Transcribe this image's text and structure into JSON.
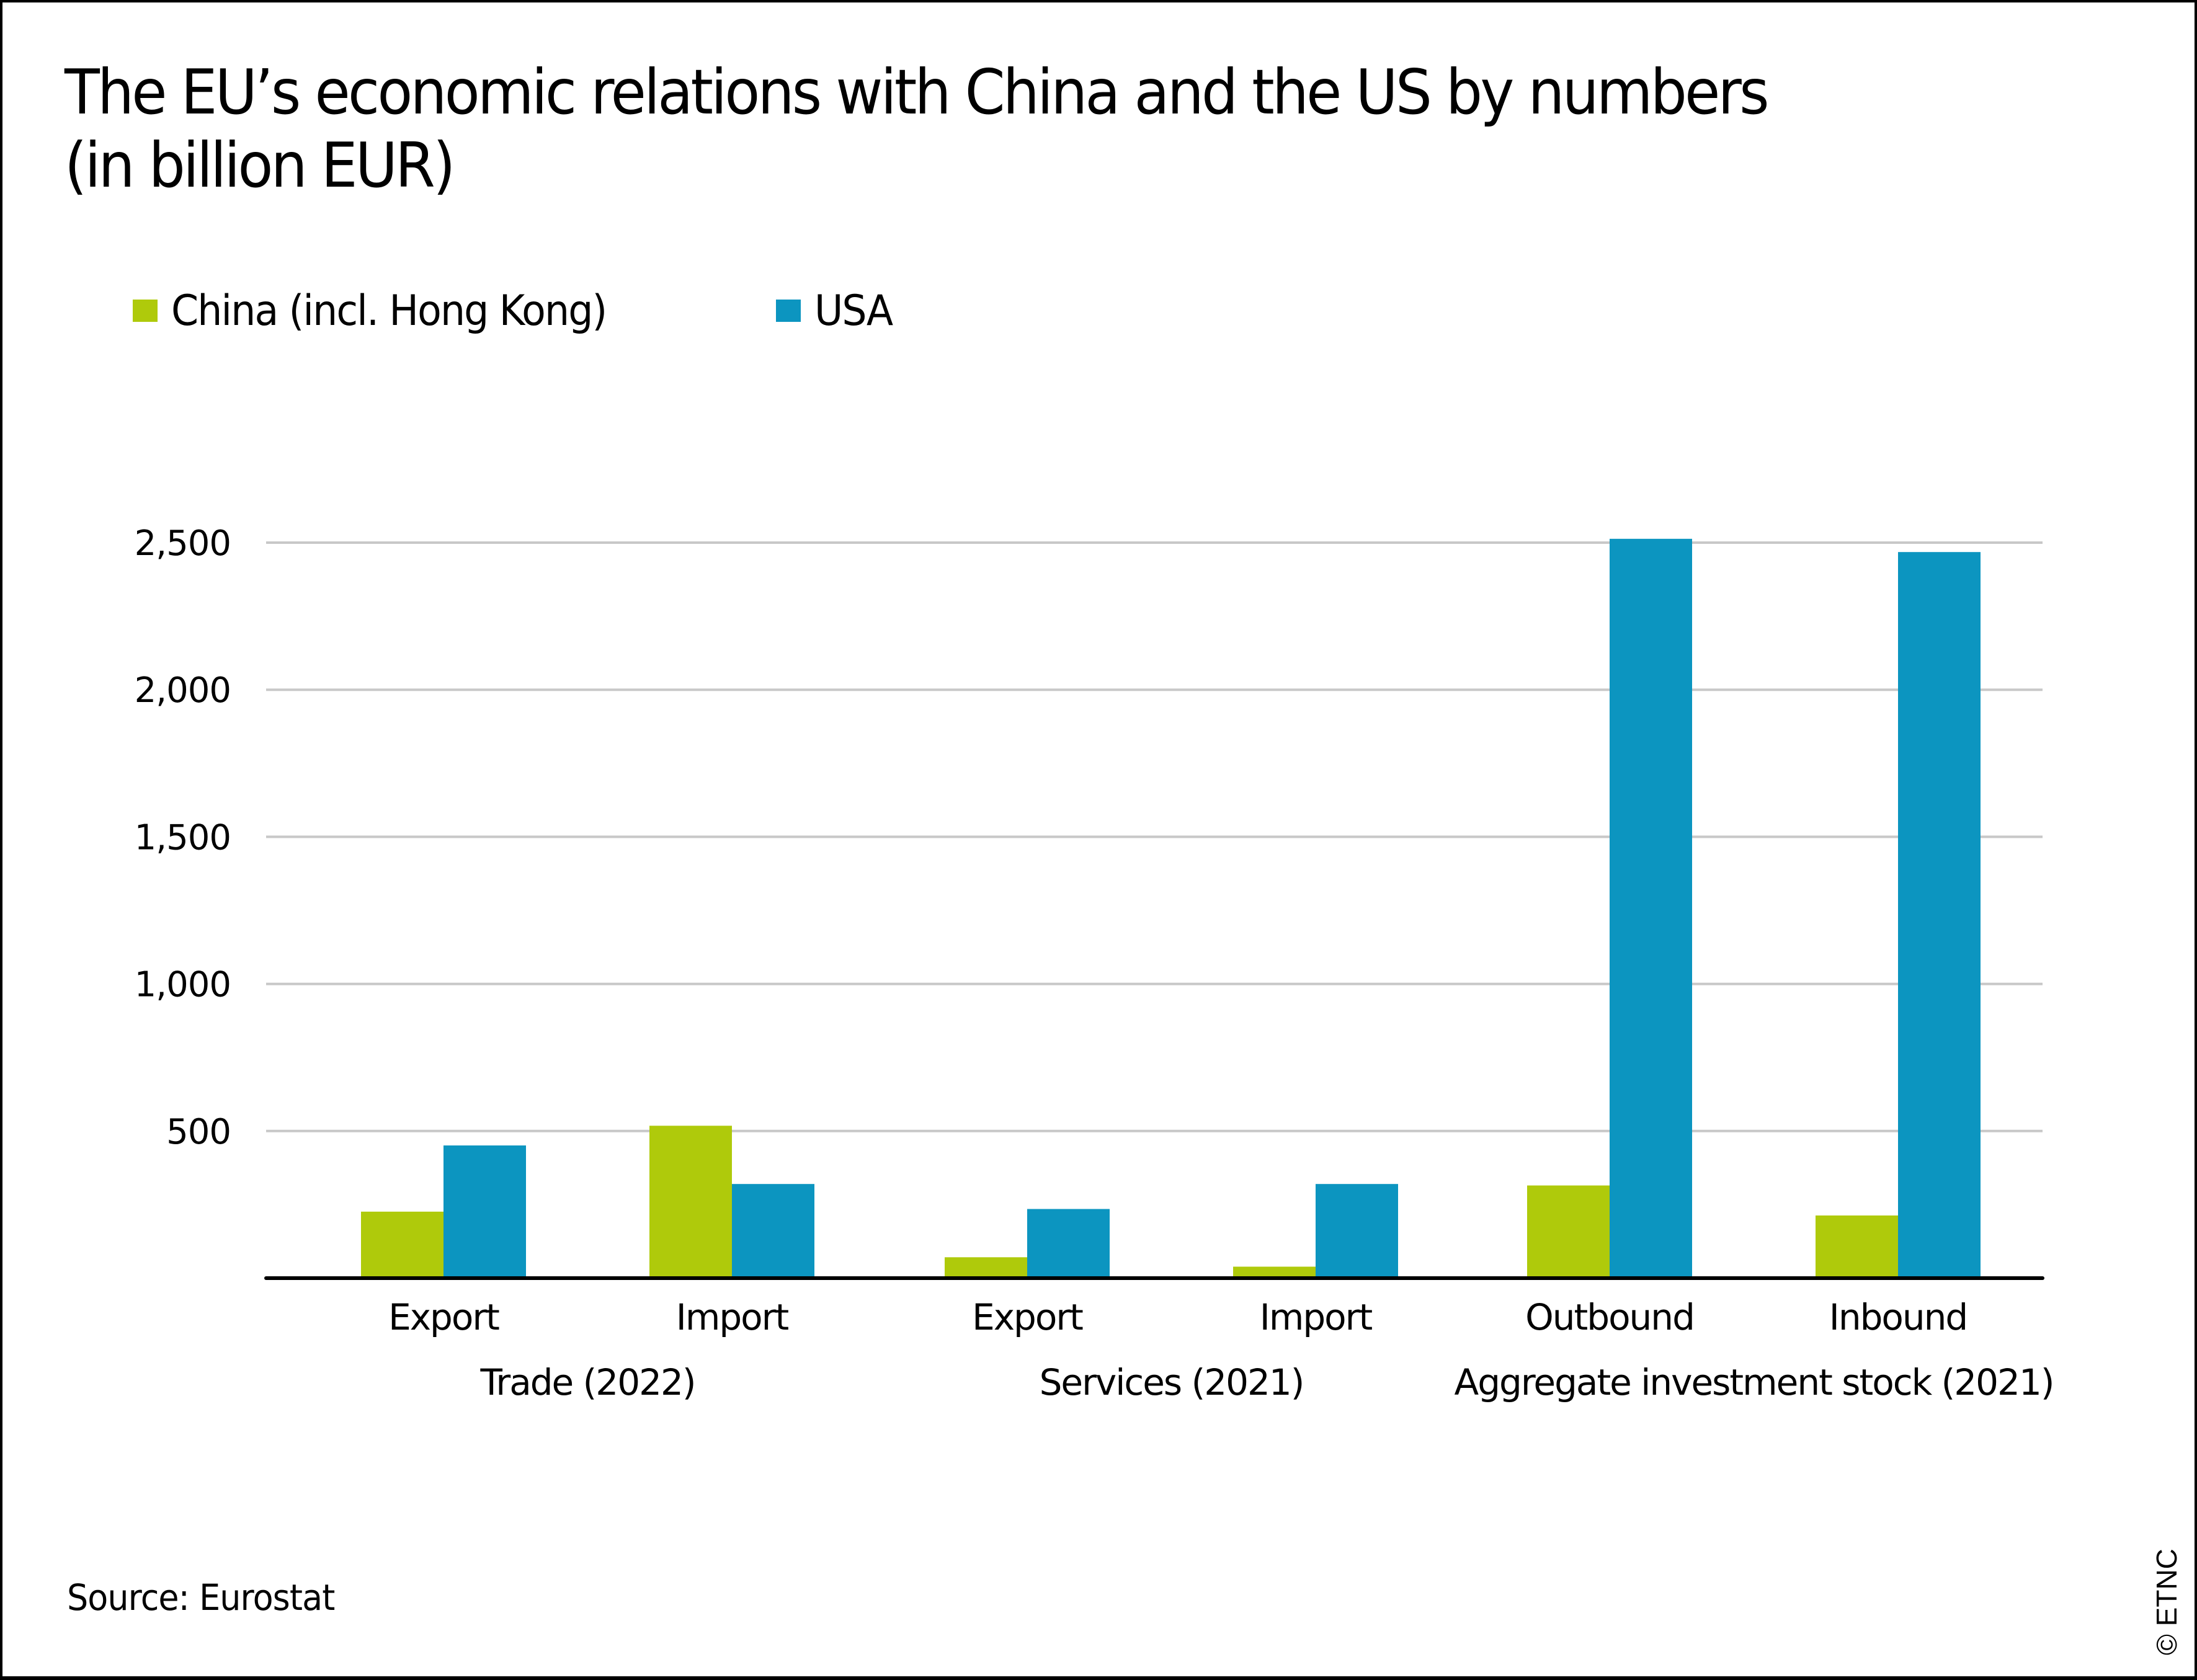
{
  "title_lines": [
    "The EU’s economic relations with China and the US by numbers",
    "(in billion EUR)"
  ],
  "legend": [
    {
      "label": "China (incl. Hong Kong)",
      "color": "#AFCA0B"
    },
    {
      "label": "USA",
      "color": "#0C95C0"
    }
  ],
  "source": "Source: Eurostat",
  "copyright": "© ETNC",
  "chart_data": {
    "type": "bar",
    "title": "The EU’s economic relations with China and the US by numbers (in billion EUR)",
    "xlabel": "",
    "ylabel": "",
    "ylim": [
      0,
      2500
    ],
    "yticks": [
      500,
      1000,
      1500,
      2000,
      2500
    ],
    "ytick_labels": [
      "500",
      "1,000",
      "1,500",
      "2,000",
      "2,500"
    ],
    "grid": true,
    "legend_position": "top-left",
    "categories": [
      "Export",
      "Import",
      "Export",
      "Import",
      "Outbound",
      "Inbound"
    ],
    "groups": [
      {
        "label": "Trade (2022)",
        "categories": [
          0,
          1
        ]
      },
      {
        "label": "Services (2021)",
        "categories": [
          2,
          3
        ]
      },
      {
        "label": "Aggregate investment stock (2021)",
        "categories": [
          4,
          5
        ]
      }
    ],
    "series": [
      {
        "name": "China (incl. Hong Kong)",
        "color": "#AFCA0B",
        "values": [
          226,
          518,
          71,
          39,
          315,
          213
        ]
      },
      {
        "name": "USA",
        "color": "#0C95C0",
        "values": [
          451,
          320,
          235,
          320,
          2513,
          2468
        ]
      }
    ]
  }
}
